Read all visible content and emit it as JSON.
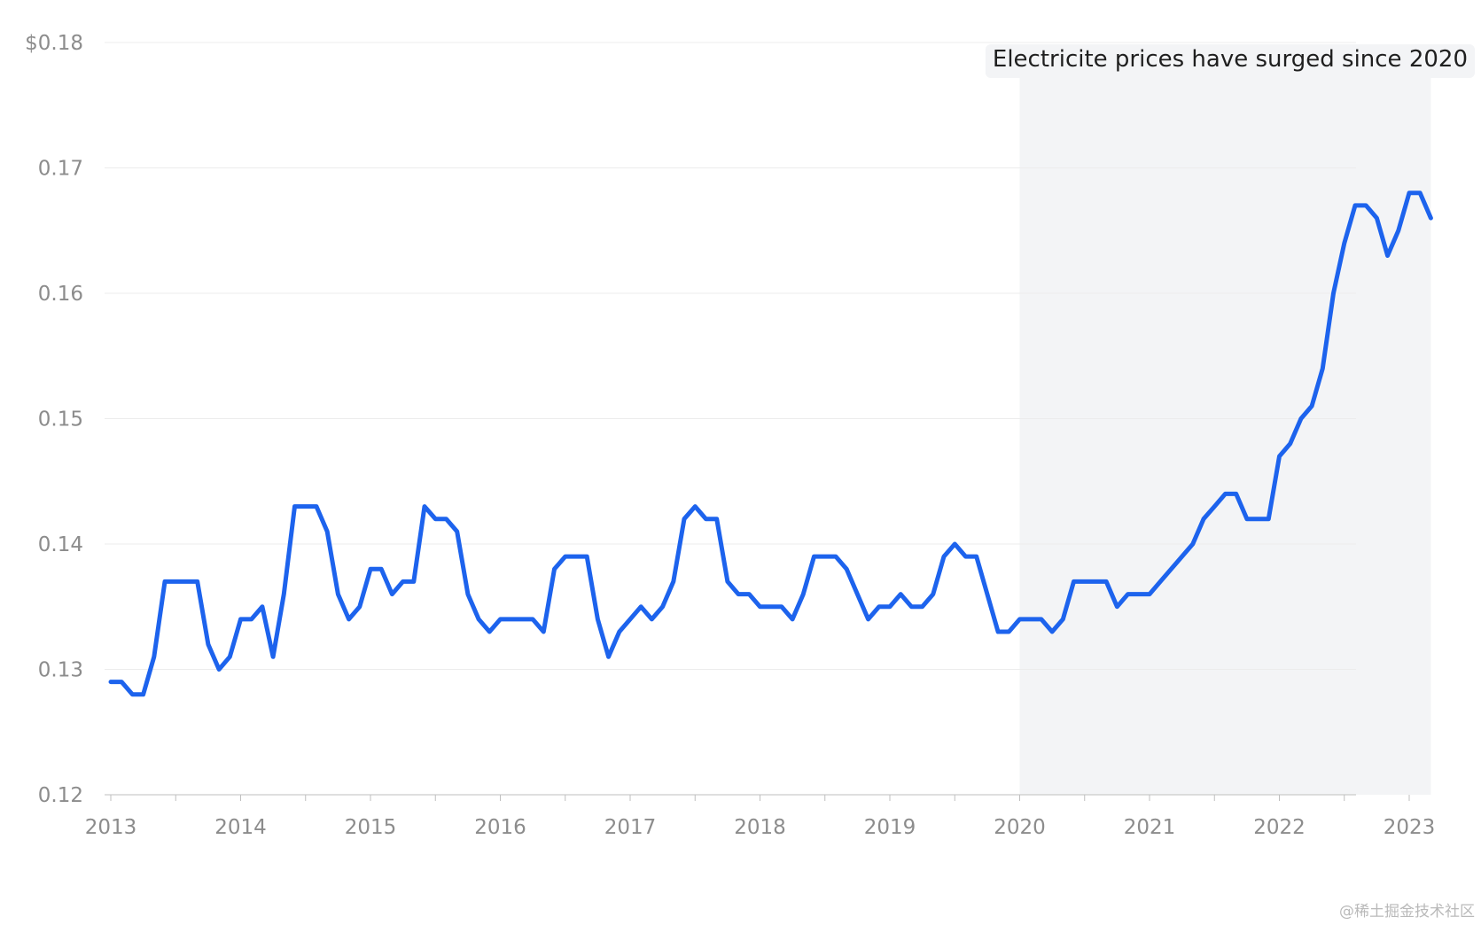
{
  "chart_data": {
    "type": "line",
    "title": "",
    "xlabel": "",
    "ylabel": "",
    "x_start": "2013-01",
    "x_end": "2023-03",
    "xlim": [
      "2013-01",
      "2023-03"
    ],
    "ylim": [
      0.12,
      0.18
    ],
    "y_ticks": [
      0.12,
      0.13,
      0.14,
      0.15,
      0.16,
      0.17,
      0.18
    ],
    "y_tick_labels": [
      "0.12",
      "0.13",
      "0.14",
      "0.15",
      "0.16",
      "0.17",
      "$0.18"
    ],
    "x_ticks": [
      "2013",
      "2014",
      "2015",
      "2016",
      "2017",
      "2018",
      "2019",
      "2020",
      "2021",
      "2022",
      "2023"
    ],
    "grid": true,
    "color": "#1d63ed",
    "series": [
      {
        "values": [
          0.129,
          0.129,
          0.128,
          0.128,
          0.131,
          0.137,
          0.137,
          0.137,
          0.137,
          0.132,
          0.13,
          0.131,
          0.134,
          0.134,
          0.135,
          0.131,
          0.136,
          0.143,
          0.143,
          0.143,
          0.141,
          0.136,
          0.134,
          0.135,
          0.138,
          0.138,
          0.136,
          0.137,
          0.137,
          0.143,
          0.142,
          0.142,
          0.141,
          0.136,
          0.134,
          0.133,
          0.134,
          0.134,
          0.134,
          0.134,
          0.133,
          0.138,
          0.139,
          0.139,
          0.139,
          0.134,
          0.131,
          0.133,
          0.134,
          0.135,
          0.134,
          0.135,
          0.137,
          0.142,
          0.143,
          0.142,
          0.142,
          0.137,
          0.136,
          0.136,
          0.135,
          0.135,
          0.135,
          0.134,
          0.136,
          0.139,
          0.139,
          0.139,
          0.138,
          0.136,
          0.134,
          0.135,
          0.135,
          0.136,
          0.135,
          0.135,
          0.136,
          0.139,
          0.14,
          0.139,
          0.139,
          0.136,
          0.133,
          0.133,
          0.134,
          0.134,
          0.134,
          0.133,
          0.134,
          0.137,
          0.137,
          0.137,
          0.137,
          0.135,
          0.136,
          0.136,
          0.136,
          0.137,
          0.138,
          0.139,
          0.14,
          0.142,
          0.143,
          0.144,
          0.144,
          0.142,
          0.142,
          0.142,
          0.147,
          0.148,
          0.15,
          0.151,
          0.154,
          0.16,
          0.164,
          0.167,
          0.167,
          0.166,
          0.163,
          0.165,
          0.168,
          0.168,
          0.166
        ]
      }
    ],
    "highlight": {
      "start": "2020-01",
      "end": "2023-03",
      "color": "#f3f4f6"
    },
    "annotation": "Electricite prices have surged since 2020"
  },
  "watermark": "@稀土掘金技术社区"
}
